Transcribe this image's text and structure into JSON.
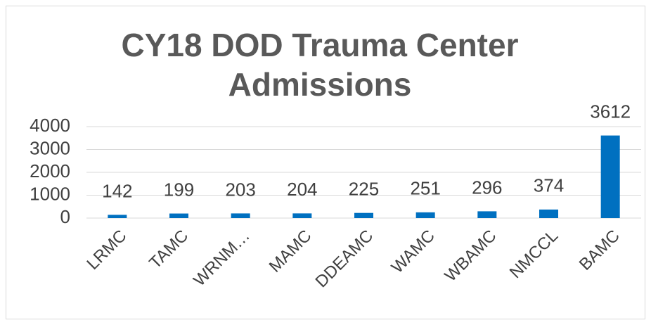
{
  "chart_data": {
    "type": "bar",
    "title": "CY18 DOD Trauma Center Admissions",
    "categories": [
      "LRMC",
      "TAMC",
      "WRNM…",
      "MAMC",
      "DDEAMC",
      "WAMC",
      "WBAMC",
      "NMCCL",
      "BAMC"
    ],
    "values": [
      142,
      199,
      203,
      204,
      225,
      251,
      296,
      374,
      3612
    ],
    "color": "#0070c0",
    "ylim": [
      0,
      4000
    ],
    "yticks": [
      0,
      1000,
      2000,
      3000,
      4000
    ],
    "grid": true
  }
}
